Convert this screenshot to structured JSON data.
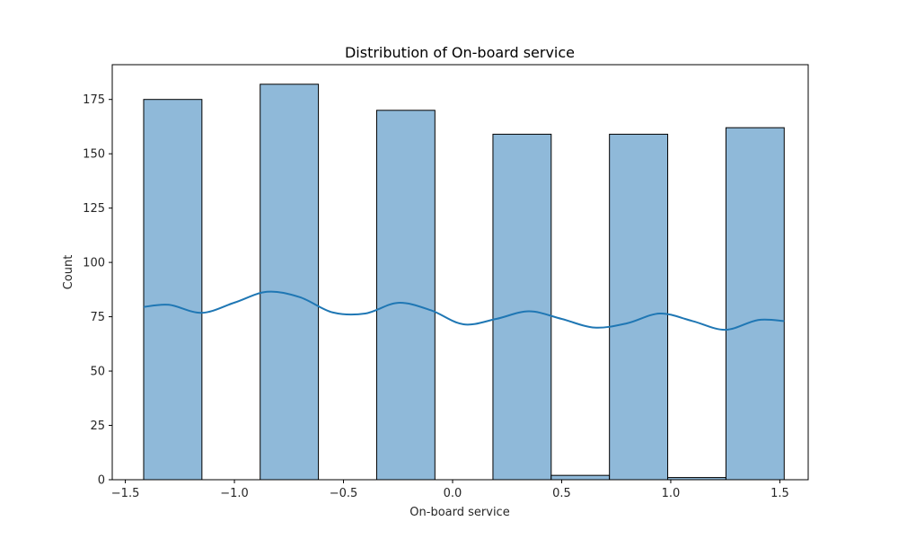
{
  "chart_data": {
    "type": "bar",
    "title": "Distribution of On-board service",
    "xlabel": "On-board service",
    "ylabel": "Count",
    "xlim": [
      -1.56,
      1.63
    ],
    "ylim": [
      0,
      191
    ],
    "x_ticks": [
      -1.5,
      -1.0,
      -0.5,
      0.0,
      0.5,
      1.0,
      1.5
    ],
    "x_tick_labels": [
      "−1.5",
      "−1.0",
      "−0.5",
      "0.0",
      "0.5",
      "1.0",
      "1.5"
    ],
    "y_ticks": [
      0,
      25,
      50,
      75,
      100,
      125,
      150,
      175
    ],
    "y_tick_labels": [
      "0",
      "25",
      "50",
      "75",
      "100",
      "125",
      "150",
      "175"
    ],
    "bins": [
      {
        "x0": -1.416,
        "x1": -1.149,
        "count": 175
      },
      {
        "x0": -1.149,
        "x1": -0.882,
        "count": 0
      },
      {
        "x0": -0.882,
        "x1": -0.615,
        "count": 182
      },
      {
        "x0": -0.615,
        "x1": -0.348,
        "count": 0
      },
      {
        "x0": -0.348,
        "x1": -0.081,
        "count": 170
      },
      {
        "x0": -0.081,
        "x1": 0.185,
        "count": 0
      },
      {
        "x0": 0.185,
        "x1": 0.452,
        "count": 159
      },
      {
        "x0": 0.452,
        "x1": 0.719,
        "count": 2
      },
      {
        "x0": 0.719,
        "x1": 0.986,
        "count": 159
      },
      {
        "x0": 0.986,
        "x1": 1.253,
        "count": 1
      },
      {
        "x0": 1.253,
        "x1": 1.52,
        "count": 162
      }
    ],
    "kde": {
      "x": [
        -1.416,
        -1.3,
        -1.15,
        -1.0,
        -0.85,
        -0.7,
        -0.55,
        -0.4,
        -0.25,
        -0.1,
        0.05,
        0.2,
        0.35,
        0.5,
        0.65,
        0.8,
        0.95,
        1.1,
        1.25,
        1.4,
        1.52
      ],
      "y": [
        79.5,
        80.5,
        76.8,
        81.5,
        86.5,
        84,
        77,
        76.5,
        81.4,
        78,
        71.5,
        74,
        77.5,
        74,
        70,
        72,
        76.5,
        73,
        69,
        73.5,
        73
      ]
    },
    "colors": {
      "bar_fill": "#8fb9d9",
      "bar_edge": "#000000",
      "kde_line": "#1f77b4"
    },
    "grid": false
  }
}
